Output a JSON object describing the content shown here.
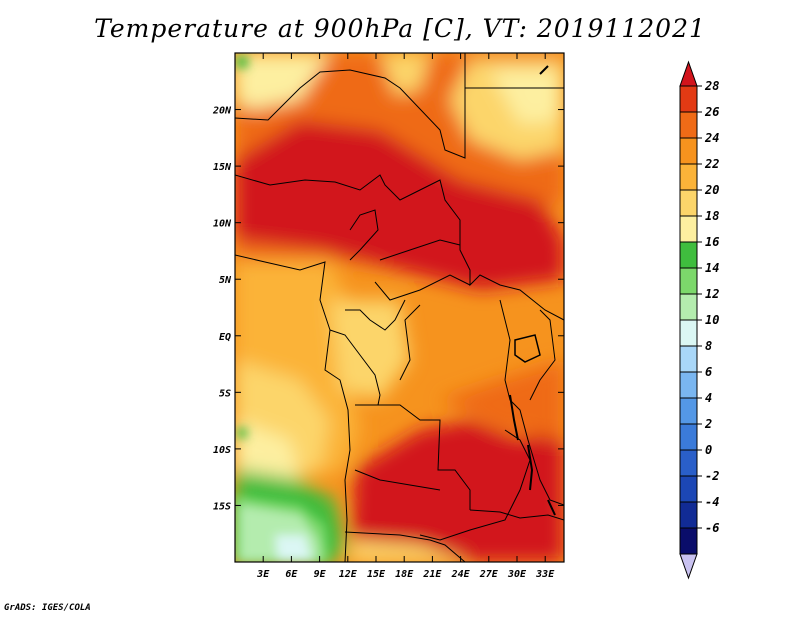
{
  "page": {
    "title": "Temperature at 900hPa [C], VT: 2019112021",
    "footer": "GrADS: IGES/COLA"
  },
  "chart_data": {
    "type": "heatmap",
    "title": "Temperature at 900hPa [C], VT: 2019112021",
    "xlabel": "",
    "ylabel": "",
    "units": "C",
    "x_ticks": [
      "3E",
      "6E",
      "9E",
      "12E",
      "15E",
      "18E",
      "21E",
      "24E",
      "27E",
      "30E",
      "33E"
    ],
    "x_tick_values": [
      3,
      6,
      9,
      12,
      15,
      18,
      21,
      24,
      27,
      30,
      33
    ],
    "y_ticks": [
      "20N",
      "15N",
      "10N",
      "5N",
      "EQ",
      "5S",
      "10S",
      "15S"
    ],
    "y_tick_values": [
      20,
      15,
      10,
      5,
      0,
      -5,
      -10,
      -15
    ],
    "xlim": [
      0,
      35
    ],
    "ylim": [
      -20,
      25
    ],
    "colorbar": {
      "labels": [
        "28",
        "26",
        "24",
        "22",
        "20",
        "18",
        "16",
        "14",
        "12",
        "10",
        "8",
        "6",
        "4",
        "2",
        "0",
        "-2",
        "-4",
        "-6"
      ],
      "levels": [
        28,
        26,
        24,
        22,
        20,
        18,
        16,
        14,
        12,
        10,
        8,
        6,
        4,
        2,
        0,
        -2,
        -4,
        -6
      ],
      "colors": [
        "#d2141c",
        "#e33a14",
        "#ef6b17",
        "#f6931e",
        "#fbb339",
        "#fcd56a",
        "#fdefa0",
        "#3fbd3e",
        "#7cd86b",
        "#b4ecae",
        "#dbf7f4",
        "#a9d7f8",
        "#7ab6f0",
        "#5498e6",
        "#3b7bd9",
        "#2a5fc9",
        "#1c47b5",
        "#112b95",
        "#0a0d6a",
        "#c9c2f0"
      ]
    }
  }
}
